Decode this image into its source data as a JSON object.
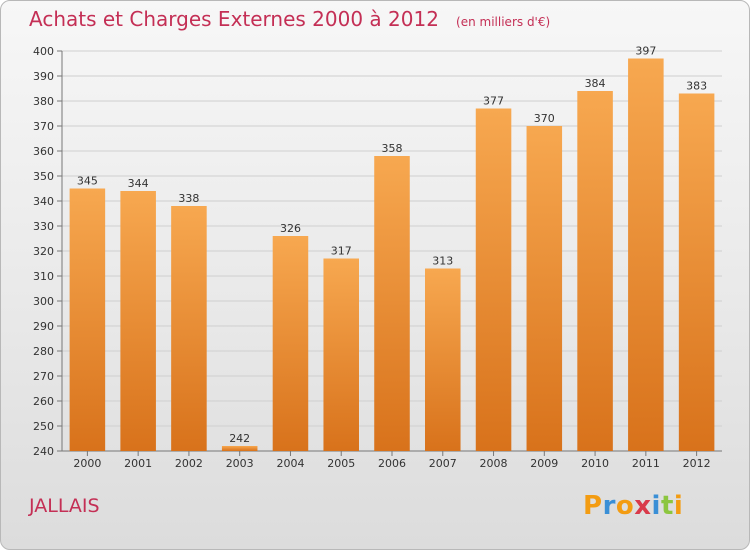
{
  "chart_data": {
    "type": "bar",
    "title": "Achats et Charges Externes 2000 à 2012",
    "subtitle": "(en milliers d'€)",
    "categories": [
      "2000",
      "2001",
      "2002",
      "2003",
      "2004",
      "2005",
      "2006",
      "2007",
      "2008",
      "2009",
      "2010",
      "2011",
      "2012"
    ],
    "values": [
      345,
      344,
      338,
      242,
      326,
      317,
      358,
      313,
      377,
      370,
      384,
      397,
      383
    ],
    "ylim": [
      240,
      400
    ],
    "yticks": [
      240,
      250,
      260,
      270,
      280,
      290,
      300,
      310,
      320,
      330,
      340,
      350,
      360,
      370,
      380,
      390,
      400
    ],
    "grid": true,
    "xlabel": "",
    "ylabel": "",
    "bar_color": "#f0902e"
  },
  "commune": "JALLAIS",
  "brand": {
    "name": "Proxiti",
    "letters": [
      "P",
      "r",
      "o",
      "x",
      "i",
      "t",
      "i"
    ],
    "colors": [
      "#f39c12",
      "#3a8fd6",
      "#f39c12",
      "#d93a4a",
      "#3a8fd6",
      "#8cc63f",
      "#f39c12"
    ]
  }
}
